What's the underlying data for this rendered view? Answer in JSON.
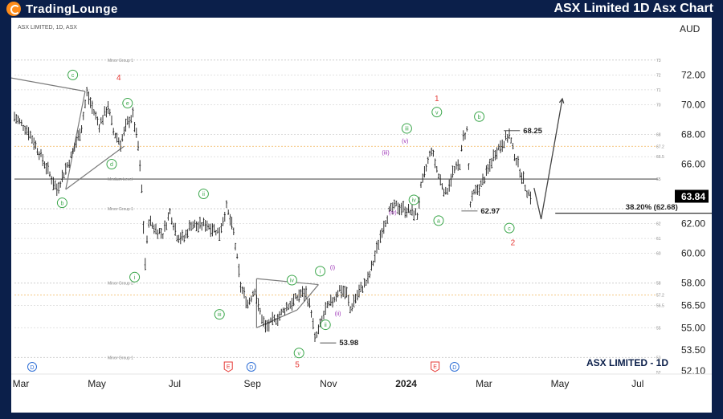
{
  "header": {
    "logo_part1": "TradingLounge",
    "title": "ASX Limited 1D Asx Chart"
  },
  "symbol_label": "ASX LIMITED, 1D, ASX",
  "currency": "AUD",
  "watermark": "ASX LIMITED - 1D",
  "chart_data": {
    "type": "line",
    "subtype": "ohlc-bar",
    "ylim": [
      52.1,
      73.8
    ],
    "y_ticks": [
      {
        "value": 72.0,
        "label": "72.00"
      },
      {
        "value": 70.0,
        "label": "70.00"
      },
      {
        "value": 68.0,
        "label": "68.00"
      },
      {
        "value": 66.0,
        "label": "66.00"
      },
      {
        "value": 62.0,
        "label": "62.00"
      },
      {
        "value": 60.0,
        "label": "60.00"
      },
      {
        "value": 58.0,
        "label": "58.00"
      },
      {
        "value": 56.5,
        "label": "56.50"
      },
      {
        "value": 55.0,
        "label": "55.00"
      },
      {
        "value": 53.5,
        "label": "53.50"
      },
      {
        "value": 52.1,
        "label": "52.10"
      }
    ],
    "minor_ticks": [
      {
        "value": 73,
        "label": "73"
      },
      {
        "value": 72,
        "label": "72"
      },
      {
        "value": 71,
        "label": "71"
      },
      {
        "value": 70,
        "label": "70"
      },
      {
        "value": 68,
        "label": "68"
      },
      {
        "value": 67.2,
        "label": "67.2"
      },
      {
        "value": 66.5,
        "label": "66.5"
      },
      {
        "value": 65,
        "label": "65"
      },
      {
        "value": 63,
        "label": "63"
      },
      {
        "value": 62,
        "label": "62"
      },
      {
        "value": 61,
        "label": "61"
      },
      {
        "value": 60,
        "label": "60"
      },
      {
        "value": 58,
        "label": "58"
      },
      {
        "value": 57.2,
        "label": "57.2"
      },
      {
        "value": 56.5,
        "label": "56.5"
      },
      {
        "value": 55,
        "label": "55"
      },
      {
        "value": 53,
        "label": "53"
      },
      {
        "value": 52,
        "label": "52"
      }
    ],
    "x_ticks": [
      "Mar",
      "May",
      "Jul",
      "Sep",
      "Nov",
      "2024",
      "Mar",
      "May",
      "Jul"
    ],
    "x_tick_index": [
      0,
      43,
      87,
      131,
      174,
      218,
      262,
      305,
      349
    ],
    "last_price": {
      "value": 63.84,
      "label": "63.84"
    },
    "levels": [
      {
        "value": 73.0,
        "label": "Minor Group 1",
        "style": "dotted",
        "color": "#c8c8c8"
      },
      {
        "value": 72.0,
        "style": "dotted",
        "color": "#d8d8d8"
      },
      {
        "value": 71.0,
        "style": "dotted",
        "color": "#d8d8d8"
      },
      {
        "value": 70.0,
        "style": "dotted",
        "color": "#d8d8d8"
      },
      {
        "value": 68.0,
        "style": "dotted",
        "color": "#d8d8d8"
      },
      {
        "value": 67.2,
        "style": "dotted",
        "color": "#f2b55a"
      },
      {
        "value": 66.5,
        "style": "dotted",
        "color": "#d8d8d8"
      },
      {
        "value": 65.0,
        "label": "Medium Level",
        "style": "solid",
        "color": "#555555"
      },
      {
        "value": 63.0,
        "label": "Minor Group 1",
        "style": "dotted",
        "color": "#c8c8c8"
      },
      {
        "value": 62.0,
        "style": "dotted",
        "color": "#d8d8d8"
      },
      {
        "value": 61.0,
        "style": "dotted",
        "color": "#d8d8d8"
      },
      {
        "value": 60.0,
        "style": "dotted",
        "color": "#d8d8d8"
      },
      {
        "value": 58.0,
        "label": "Minor Group 2",
        "style": "dotted",
        "color": "#c8c8c8"
      },
      {
        "value": 57.2,
        "style": "dotted",
        "color": "#f2b55a"
      },
      {
        "value": 56.5,
        "style": "dotted",
        "color": "#d8d8d8"
      },
      {
        "value": 55.0,
        "style": "dotted",
        "color": "#d8d8d8"
      },
      {
        "value": 53.0,
        "label": "Minor Group 1",
        "style": "dotted",
        "color": "#c8c8c8"
      }
    ],
    "path": [
      [
        0,
        69.2
      ],
      [
        8,
        68.2
      ],
      [
        16,
        66.3
      ],
      [
        24,
        64.3
      ],
      [
        32,
        66.5
      ],
      [
        38,
        68.5
      ],
      [
        41,
        70.8
      ],
      [
        44,
        69.8
      ],
      [
        48,
        68.6
      ],
      [
        53,
        69.9
      ],
      [
        56,
        68.2
      ],
      [
        60,
        67.4
      ],
      [
        64,
        68.8
      ],
      [
        67,
        69.3
      ],
      [
        70,
        67.2
      ],
      [
        72,
        64.3
      ],
      [
        74,
        59.3
      ],
      [
        76,
        62.2
      ],
      [
        80,
        61.6
      ],
      [
        84,
        61.3
      ],
      [
        88,
        62.8
      ],
      [
        92,
        61.2
      ],
      [
        96,
        61.0
      ],
      [
        100,
        62.0
      ],
      [
        104,
        61.8
      ],
      [
        108,
        62.0
      ],
      [
        112,
        61.7
      ],
      [
        116,
        61.4
      ],
      [
        120,
        63.1
      ],
      [
        124,
        61.4
      ],
      [
        128,
        57.8
      ],
      [
        132,
        56.6
      ],
      [
        136,
        57.6
      ],
      [
        138,
        56.4
      ],
      [
        142,
        55.0
      ],
      [
        146,
        55.4
      ],
      [
        150,
        55.8
      ],
      [
        154,
        56.4
      ],
      [
        158,
        56.8
      ],
      [
        162,
        57.3
      ],
      [
        165,
        57.3
      ],
      [
        168,
        56.1
      ],
      [
        170,
        54.2
      ],
      [
        172,
        54.8
      ],
      [
        176,
        56.2
      ],
      [
        180,
        56.8
      ],
      [
        184,
        57.6
      ],
      [
        188,
        57.3
      ],
      [
        190,
        56.2
      ],
      [
        192,
        56.8
      ],
      [
        196,
        57.6
      ],
      [
        200,
        58.2
      ],
      [
        204,
        59.8
      ],
      [
        208,
        61.6
      ],
      [
        212,
        62.8
      ],
      [
        216,
        63.2
      ],
      [
        220,
        63.0
      ],
      [
        224,
        62.8
      ],
      [
        228,
        62.6
      ],
      [
        230,
        64.4
      ],
      [
        234,
        66.2
      ],
      [
        236,
        67.0
      ],
      [
        240,
        65.2
      ],
      [
        244,
        64.0
      ],
      [
        248,
        65.4
      ],
      [
        252,
        66.0
      ],
      [
        254,
        67.8
      ],
      [
        256,
        68.3
      ],
      [
        258,
        63.3
      ],
      [
        260,
        64.0
      ],
      [
        264,
        64.6
      ],
      [
        268,
        65.6
      ],
      [
        272,
        66.8
      ],
      [
        276,
        67.4
      ],
      [
        280,
        68.0
      ],
      [
        282,
        67.0
      ],
      [
        286,
        65.6
      ],
      [
        290,
        64.2
      ],
      [
        293,
        63.7
      ]
    ],
    "projection": [
      [
        294,
        64.4
      ],
      [
        298,
        62.3
      ],
      [
        310,
        70.4
      ]
    ],
    "trendlines": [
      {
        "points": [
          [
            -2,
            71.8
          ],
          [
            40,
            70.9
          ]
        ],
        "color": "#7a7a7a"
      },
      {
        "points": [
          [
            29,
            64.3
          ],
          [
            40,
            70.9
          ]
        ],
        "color": "#7a7a7a"
      },
      {
        "points": [
          [
            29,
            64.3
          ],
          [
            62,
            67.2
          ]
        ],
        "color": "#7a7a7a"
      },
      {
        "points": [
          [
            137,
            58.3
          ],
          [
            172,
            57.9
          ]
        ],
        "color": "#7a7a7a"
      },
      {
        "points": [
          [
            137,
            58.3
          ],
          [
            137,
            55.0
          ]
        ],
        "color": "#7a7a7a"
      },
      {
        "points": [
          [
            137,
            55.0
          ],
          [
            160,
            56.2
          ]
        ],
        "color": "#7a7a7a"
      },
      {
        "points": [
          [
            160,
            56.2
          ],
          [
            172,
            57.9
          ]
        ],
        "color": "#7a7a7a"
      },
      {
        "points": [
          [
            306,
            62.7
          ],
          [
            396,
            62.7
          ]
        ],
        "color": "#333333"
      }
    ],
    "price_labels": [
      {
        "text": "68.25",
        "x": 286,
        "y": 68.25
      },
      {
        "text": "62.97",
        "x": 262,
        "y": 62.85
      },
      {
        "text": "53.98",
        "x": 182,
        "y": 53.98
      },
      {
        "text": "38.20% (62.68)",
        "x": 344,
        "y": 63.1
      }
    ],
    "wave_labels": [
      {
        "text": "c",
        "x": 33,
        "y": 72.0,
        "style": "circle",
        "color": "#3aa64a"
      },
      {
        "text": "4",
        "x": 59,
        "y": 71.8,
        "style": "plain",
        "color": "#e53935"
      },
      {
        "text": "e",
        "x": 64,
        "y": 70.1,
        "style": "circle",
        "color": "#3aa64a"
      },
      {
        "text": "d",
        "x": 55,
        "y": 66.0,
        "style": "circle",
        "color": "#3aa64a"
      },
      {
        "text": "b",
        "x": 27,
        "y": 63.4,
        "style": "circle",
        "color": "#3aa64a"
      },
      {
        "text": "ii",
        "x": 107,
        "y": 64.0,
        "style": "circle",
        "color": "#3aa64a"
      },
      {
        "text": "i",
        "x": 68,
        "y": 58.4,
        "style": "circle",
        "color": "#3aa64a"
      },
      {
        "text": "iii",
        "x": 116,
        "y": 55.9,
        "style": "circle",
        "color": "#3aa64a"
      },
      {
        "text": "iv",
        "x": 157,
        "y": 58.2,
        "style": "circle",
        "color": "#3aa64a"
      },
      {
        "text": "v",
        "x": 161,
        "y": 53.3,
        "style": "circle",
        "color": "#3aa64a"
      },
      {
        "text": "5",
        "x": 160,
        "y": 52.5,
        "style": "plain",
        "color": "#e53935"
      },
      {
        "text": "i",
        "x": 173,
        "y": 58.8,
        "style": "circle",
        "color": "#3aa64a"
      },
      {
        "text": "ii",
        "x": 176,
        "y": 55.2,
        "style": "circle",
        "color": "#3aa64a"
      },
      {
        "text": "(i)",
        "x": 180,
        "y": 59.1,
        "style": "plain",
        "color": "#9b30b5"
      },
      {
        "text": "(ii)",
        "x": 183,
        "y": 56.0,
        "style": "plain",
        "color": "#9b30b5"
      },
      {
        "text": "(iii)",
        "x": 210,
        "y": 66.8,
        "style": "plain",
        "color": "#9b30b5"
      },
      {
        "text": "iii",
        "x": 222,
        "y": 68.4,
        "style": "circle",
        "color": "#3aa64a"
      },
      {
        "text": "(v)",
        "x": 221,
        "y": 67.6,
        "style": "plain",
        "color": "#9b30b5"
      },
      {
        "text": "(iv)",
        "x": 214,
        "y": 62.8,
        "style": "plain",
        "color": "#9b30b5"
      },
      {
        "text": "iv",
        "x": 226,
        "y": 63.6,
        "style": "circle",
        "color": "#3aa64a"
      },
      {
        "text": "v",
        "x": 239,
        "y": 69.5,
        "style": "circle",
        "color": "#3aa64a"
      },
      {
        "text": "1",
        "x": 239,
        "y": 70.4,
        "style": "plain",
        "color": "#e53935"
      },
      {
        "text": "a",
        "x": 240,
        "y": 62.2,
        "style": "circle",
        "color": "#3aa64a"
      },
      {
        "text": "b",
        "x": 263,
        "y": 69.2,
        "style": "circle",
        "color": "#3aa64a"
      },
      {
        "text": "c",
        "x": 280,
        "y": 61.7,
        "style": "circle",
        "color": "#3aa64a"
      },
      {
        "text": "2",
        "x": 282,
        "y": 60.7,
        "style": "plain",
        "color": "#e53935"
      }
    ],
    "events": [
      {
        "text": "D",
        "x": 10,
        "type": "D"
      },
      {
        "text": "E",
        "x": 121,
        "type": "E"
      },
      {
        "text": "D",
        "x": 134,
        "type": "D"
      },
      {
        "text": "E",
        "x": 238,
        "type": "E"
      },
      {
        "text": "D",
        "x": 249,
        "type": "D"
      }
    ]
  }
}
